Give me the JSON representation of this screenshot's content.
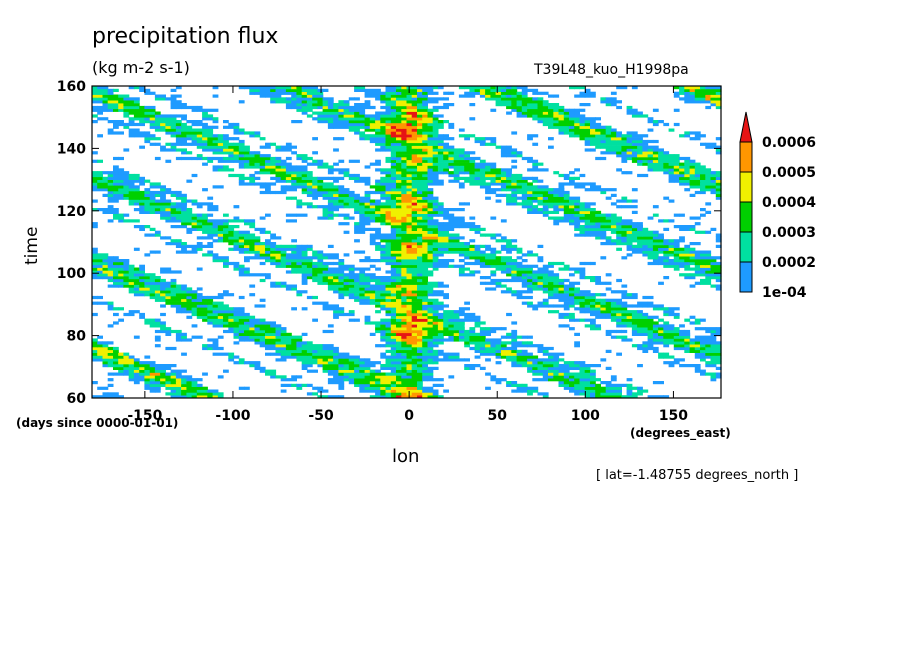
{
  "chart_data": {
    "type": "heatmap",
    "title": "precipitation flux",
    "subtitle": "(kg m-2 s-1)",
    "run_label": "T39L48_kuo_H1998pa",
    "xlabel": "lon",
    "ylabel": "time",
    "x_units": "(degrees_east)",
    "y_units": "(days since 0000-01-01)",
    "footnote": "[ lat=-1.48755 degrees_north ]",
    "xlim": [
      -180,
      177
    ],
    "ylim": [
      60,
      160
    ],
    "x_ticks": [
      -150,
      -100,
      -50,
      0,
      50,
      100,
      150
    ],
    "x_tick_labels": [
      "-150",
      "-100",
      "-50",
      "0",
      "50",
      "100",
      "150"
    ],
    "y_ticks": [
      60,
      80,
      100,
      120,
      140,
      160
    ],
    "y_tick_labels": [
      "60",
      "80",
      "100",
      "120",
      "140",
      "160"
    ],
    "colorbar": {
      "levels": [
        0.0001,
        0.0002,
        0.0003,
        0.0004,
        0.0005,
        0.0006
      ],
      "labels": [
        "1e-04",
        "0.0002",
        "0.0003",
        "0.0004",
        "0.0005",
        "0.0006"
      ],
      "colors": [
        "#1e9bff",
        "#00e0a0",
        "#00d000",
        "#f0f000",
        "#ff9600",
        "#e61414"
      ],
      "extend": "max"
    },
    "description_features": {
      "stationary_max_lon": 0,
      "propagation": "westward-propagating bands"
    }
  }
}
